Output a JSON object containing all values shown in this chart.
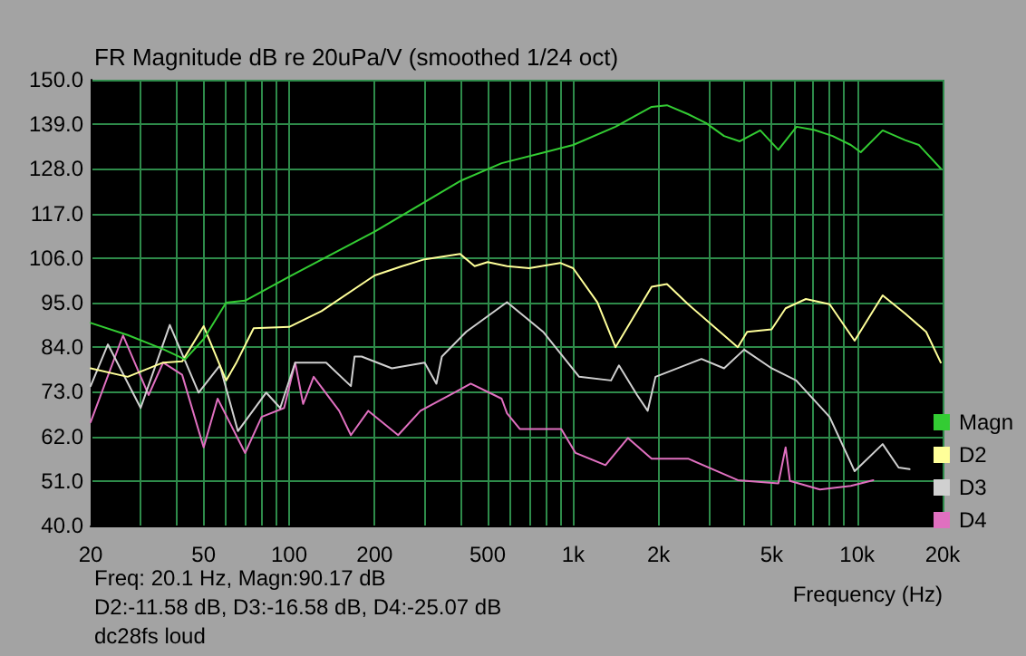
{
  "chart_data": {
    "type": "line",
    "title": "FR Magnitude dB re 20uPa/V (smoothed 1/24 oct)",
    "xlabel": "Frequency (Hz)",
    "annotations": [
      "Freq: 20.1 Hz, Magn:90.17 dB",
      "D2:-11.58 dB, D3:-16.58 dB, D4:-25.07 dB",
      "dc28fs loud"
    ],
    "log": "x",
    "grid": true,
    "legend": "right",
    "marker": "none",
    "line_style": "solid",
    "xlim": [
      20,
      20000
    ],
    "xticks": [
      20,
      {
        "value": 30,
        "label": null
      },
      {
        "value": 40,
        "label": null
      },
      50,
      {
        "value": 60,
        "label": null
      },
      {
        "value": 70,
        "label": null
      },
      {
        "value": 80,
        "label": null
      },
      {
        "value": 90,
        "label": null
      },
      100,
      200,
      {
        "value": 300,
        "label": null
      },
      {
        "value": 400,
        "label": null
      },
      500,
      {
        "value": 600,
        "label": null
      },
      {
        "value": 700,
        "label": null
      },
      {
        "value": 800,
        "label": null
      },
      {
        "value": 900,
        "label": null
      },
      {
        "value": 1000,
        "label": "1k"
      },
      {
        "value": 2000,
        "label": "2k"
      },
      {
        "value": 3000,
        "label": null
      },
      {
        "value": 4000,
        "label": null
      },
      {
        "value": 5000,
        "label": "5k"
      },
      {
        "value": 6000,
        "label": null
      },
      {
        "value": 7000,
        "label": null
      },
      {
        "value": 8000,
        "label": null
      },
      {
        "value": 9000,
        "label": null
      },
      {
        "value": 10000,
        "label": "10k"
      },
      {
        "value": 20000,
        "label": "20k"
      }
    ],
    "ylim": [
      40,
      150
    ],
    "yticks": [
      {
        "value": 40,
        "label": "40.0"
      },
      {
        "value": 51,
        "label": "51.0"
      },
      {
        "value": 62,
        "label": "62.0"
      },
      {
        "value": 73,
        "label": "73.0"
      },
      {
        "value": 84,
        "label": "84.0"
      },
      {
        "value": 95,
        "label": "95.0"
      },
      {
        "value": 106,
        "label": "106.0"
      },
      {
        "value": 117,
        "label": "117.0"
      },
      {
        "value": 128,
        "label": "128.0"
      },
      {
        "value": 139,
        "label": "139.0"
      },
      {
        "value": 150,
        "label": "150.0"
      }
    ],
    "series": [
      {
        "name": "D4",
        "color": "#e070c0",
        "x": [
          20,
          26,
          32,
          36,
          42,
          50,
          56,
          70,
          80,
          96,
          105,
          112,
          122,
          150,
          165,
          190,
          242,
          290,
          436,
          560,
          585,
          650,
          780,
          908,
          1020,
          1300,
          1560,
          1890,
          2540,
          3800,
          5280,
          5600,
          5800,
          7400,
          9500,
          11400
        ],
        "values": [
          65.5,
          86.9,
          72.2,
          80.2,
          77.2,
          59.3,
          71.3,
          57.9,
          66.8,
          69,
          80.2,
          70,
          76.7,
          68.3,
          62.3,
          68.3,
          62.3,
          68.3,
          75,
          71.3,
          67.7,
          63.8,
          63.8,
          63.8,
          57.9,
          54.9,
          61.6,
          56.5,
          56.5,
          51.2,
          50.4,
          59.3,
          51,
          48.9,
          49.8,
          51.2
        ]
      },
      {
        "name": "D3",
        "color": "#d0d0d0",
        "x": [
          20,
          23,
          30,
          38,
          48,
          57,
          66,
          83,
          93,
          105,
          135,
          165,
          170,
          180,
          230,
          300,
          330,
          345,
          420,
          585,
          784,
          1050,
          1360,
          1450,
          1680,
          1830,
          1950,
          2830,
          3400,
          4000,
          5000,
          6100,
          8000,
          9800,
          12300,
          14000,
          15300
        ],
        "values": [
          74.4,
          84.7,
          69,
          89.5,
          72.8,
          79.5,
          63.3,
          72.8,
          69,
          80.2,
          80.2,
          74.4,
          81.7,
          81.7,
          78.8,
          80.2,
          75,
          81.7,
          87.8,
          95.1,
          87.8,
          76.7,
          75.8,
          79.5,
          72.2,
          68.3,
          76.7,
          81.1,
          78.8,
          83.4,
          78.8,
          75.8,
          66.8,
          53.4,
          60.1,
          54.3,
          53.9
        ]
      },
      {
        "name": "D2",
        "color": "#ffff99",
        "x": [
          20,
          27,
          36,
          42,
          50,
          60,
          65,
          75,
          100,
          130,
          200,
          250,
          300,
          400,
          450,
          500,
          585,
          700,
          900,
          1000,
          1217,
          1410,
          1890,
          2140,
          2540,
          3800,
          4100,
          5000,
          5600,
          6600,
          8000,
          9800,
          12300,
          14750,
          17500,
          19700
        ],
        "values": [
          78.8,
          76.7,
          80.2,
          80.5,
          89.2,
          75.8,
          80,
          88.7,
          89,
          92.9,
          101.7,
          104,
          105.7,
          107,
          104,
          105,
          104,
          103.5,
          104.8,
          103.5,
          95.1,
          84,
          98.9,
          99.6,
          94.6,
          84,
          87.8,
          88.4,
          93.6,
          95.9,
          94.6,
          85.6,
          96.8,
          92.3,
          87.8,
          80.2
        ]
      },
      {
        "name": "Magn",
        "color": "#33cc33",
        "x": [
          20,
          27,
          36,
          43,
          50,
          60,
          70,
          100,
          200,
          400,
          560,
          784,
          1000,
          1410,
          1890,
          2140,
          2540,
          2940,
          3400,
          3860,
          4560,
          5280,
          6120,
          7090,
          8200,
          9500,
          10300,
          12300,
          14750,
          16500,
          19700
        ],
        "values": [
          90,
          87,
          83.5,
          81,
          86,
          95,
          95.5,
          101.4,
          112.5,
          125,
          129.4,
          132,
          133.9,
          138.4,
          143.3,
          143.7,
          141.5,
          139.3,
          136.1,
          134.8,
          137.5,
          132.7,
          138.4,
          137.6,
          136.1,
          133.9,
          132.1,
          137.5,
          135.1,
          133.9,
          128.1
        ]
      }
    ]
  }
}
